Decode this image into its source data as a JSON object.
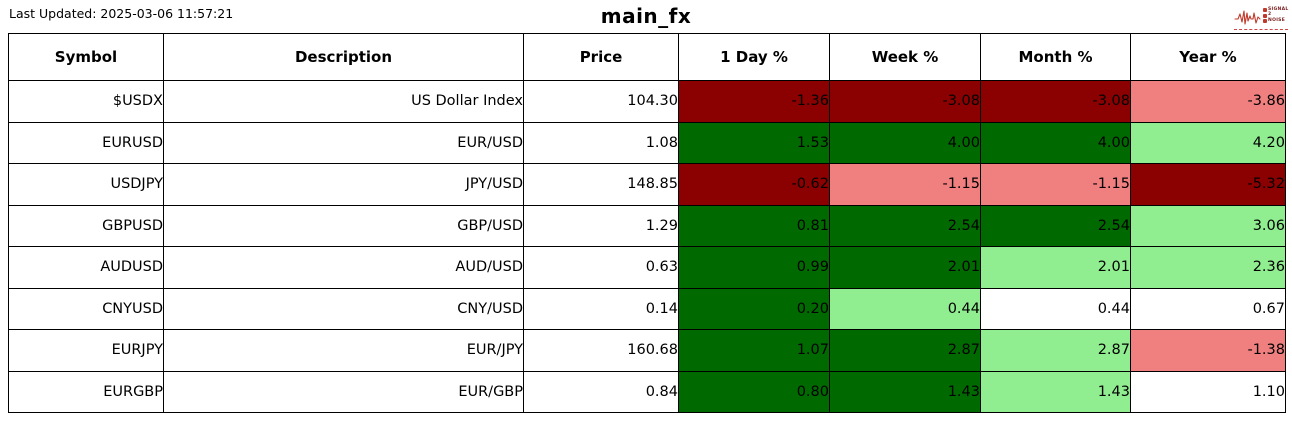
{
  "header": {
    "last_updated": "Last Updated: 2025-03-06 11:57:21",
    "title": "main_fx",
    "logo": {
      "line1": "SIGNAL",
      "line2": "2",
      "line3": "NOISE",
      "accent_color": "#c0392b"
    }
  },
  "colors": {
    "dark_red": "#8b0000",
    "light_red": "#f08080",
    "dark_green": "#006a00",
    "light_green": "#90ee90",
    "neutral": "#ffffff"
  },
  "table": {
    "columns": [
      "Symbol",
      "Description",
      "Price",
      "1 Day %",
      "Week %",
      "Month %",
      "Year %"
    ],
    "rows": [
      {
        "symbol": "$USDX",
        "description": "US Dollar Index",
        "price": "104.30",
        "changes": [
          {
            "value": "-1.36",
            "tone": "dark_red"
          },
          {
            "value": "-3.08",
            "tone": "dark_red"
          },
          {
            "value": "-3.08",
            "tone": "dark_red"
          },
          {
            "value": "-3.86",
            "tone": "light_red"
          }
        ]
      },
      {
        "symbol": "EURUSD",
        "description": "EUR/USD",
        "price": "1.08",
        "changes": [
          {
            "value": "1.53",
            "tone": "dark_green"
          },
          {
            "value": "4.00",
            "tone": "dark_green"
          },
          {
            "value": "4.00",
            "tone": "dark_green"
          },
          {
            "value": "4.20",
            "tone": "light_green"
          }
        ]
      },
      {
        "symbol": "USDJPY",
        "description": "JPY/USD",
        "price": "148.85",
        "changes": [
          {
            "value": "-0.62",
            "tone": "dark_red"
          },
          {
            "value": "-1.15",
            "tone": "light_red"
          },
          {
            "value": "-1.15",
            "tone": "light_red"
          },
          {
            "value": "-5.32",
            "tone": "dark_red"
          }
        ]
      },
      {
        "symbol": "GBPUSD",
        "description": "GBP/USD",
        "price": "1.29",
        "changes": [
          {
            "value": "0.81",
            "tone": "dark_green"
          },
          {
            "value": "2.54",
            "tone": "dark_green"
          },
          {
            "value": "2.54",
            "tone": "dark_green"
          },
          {
            "value": "3.06",
            "tone": "light_green"
          }
        ]
      },
      {
        "symbol": "AUDUSD",
        "description": "AUD/USD",
        "price": "0.63",
        "changes": [
          {
            "value": "0.99",
            "tone": "dark_green"
          },
          {
            "value": "2.01",
            "tone": "dark_green"
          },
          {
            "value": "2.01",
            "tone": "light_green"
          },
          {
            "value": "2.36",
            "tone": "light_green"
          }
        ]
      },
      {
        "symbol": "CNYUSD",
        "description": "CNY/USD",
        "price": "0.14",
        "changes": [
          {
            "value": "0.20",
            "tone": "dark_green"
          },
          {
            "value": "0.44",
            "tone": "light_green"
          },
          {
            "value": "0.44",
            "tone": "neutral"
          },
          {
            "value": "0.67",
            "tone": "neutral"
          }
        ]
      },
      {
        "symbol": "EURJPY",
        "description": "EUR/JPY",
        "price": "160.68",
        "changes": [
          {
            "value": "1.07",
            "tone": "dark_green"
          },
          {
            "value": "2.87",
            "tone": "dark_green"
          },
          {
            "value": "2.87",
            "tone": "light_green"
          },
          {
            "value": "-1.38",
            "tone": "light_red"
          }
        ]
      },
      {
        "symbol": "EURGBP",
        "description": "EUR/GBP",
        "price": "0.84",
        "changes": [
          {
            "value": "0.80",
            "tone": "dark_green"
          },
          {
            "value": "1.43",
            "tone": "dark_green"
          },
          {
            "value": "1.43",
            "tone": "light_green"
          },
          {
            "value": "1.10",
            "tone": "neutral"
          }
        ]
      }
    ]
  },
  "chart_data": {
    "type": "table",
    "title": "main_fx",
    "last_updated": "2025-03-06 11:57:21",
    "columns": [
      "Symbol",
      "Description",
      "Price",
      "1 Day %",
      "Week %",
      "Month %",
      "Year %"
    ],
    "rows": [
      {
        "symbol": "$USDX",
        "description": "US Dollar Index",
        "price": 104.3,
        "day_pct": -1.36,
        "week_pct": -3.08,
        "month_pct": -3.08,
        "year_pct": -3.86
      },
      {
        "symbol": "EURUSD",
        "description": "EUR/USD",
        "price": 1.08,
        "day_pct": 1.53,
        "week_pct": 4.0,
        "month_pct": 4.0,
        "year_pct": 4.2
      },
      {
        "symbol": "USDJPY",
        "description": "JPY/USD",
        "price": 148.85,
        "day_pct": -0.62,
        "week_pct": -1.15,
        "month_pct": -1.15,
        "year_pct": -5.32
      },
      {
        "symbol": "GBPUSD",
        "description": "GBP/USD",
        "price": 1.29,
        "day_pct": 0.81,
        "week_pct": 2.54,
        "month_pct": 2.54,
        "year_pct": 3.06
      },
      {
        "symbol": "AUDUSD",
        "description": "AUD/USD",
        "price": 0.63,
        "day_pct": 0.99,
        "week_pct": 2.01,
        "month_pct": 2.01,
        "year_pct": 2.36
      },
      {
        "symbol": "CNYUSD",
        "description": "CNY/USD",
        "price": 0.14,
        "day_pct": 0.2,
        "week_pct": 0.44,
        "month_pct": 0.44,
        "year_pct": 0.67
      },
      {
        "symbol": "EURJPY",
        "description": "EUR/JPY",
        "price": 160.68,
        "day_pct": 1.07,
        "week_pct": 2.87,
        "month_pct": 2.87,
        "year_pct": -1.38
      },
      {
        "symbol": "EURGBP",
        "description": "EUR/GBP",
        "price": 0.84,
        "day_pct": 0.8,
        "week_pct": 1.43,
        "month_pct": 1.43,
        "year_pct": 1.1
      }
    ],
    "color_coding": "cell background encodes change magnitude: dark green strong gain, light green mild gain, white near-flat, light red mild loss, dark red strong loss",
    "legend_position": "none",
    "grid": "full cell borders, black"
  }
}
